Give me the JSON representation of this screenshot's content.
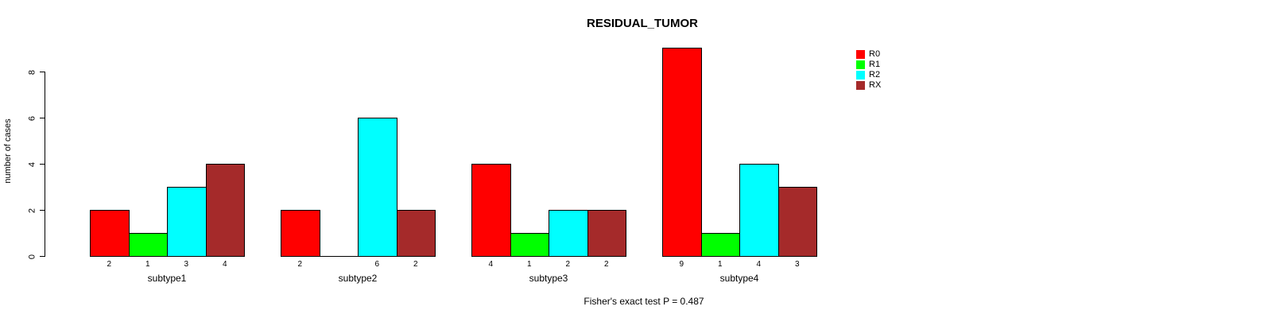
{
  "title": "RESIDUAL_TUMOR",
  "footer_annotation": "Fisher's exact test P = 0.487",
  "y_axis": {
    "label": "number of cases",
    "tick_labels": [
      "0",
      "2",
      "4",
      "6",
      "8"
    ]
  },
  "chart_data": {
    "type": "bar",
    "title": "RESIDUAL_TUMOR",
    "xlabel": "",
    "ylabel": "number of cases",
    "categories": [
      "subtype1",
      "subtype2",
      "subtype3",
      "subtype4"
    ],
    "series": [
      {
        "name": "R0",
        "color": "#FF0000",
        "values": [
          2,
          2,
          4,
          9
        ]
      },
      {
        "name": "R1",
        "color": "#00FF00",
        "values": [
          1,
          0,
          1,
          1
        ]
      },
      {
        "name": "R2",
        "color": "#00FFFF",
        "values": [
          3,
          6,
          2,
          4
        ]
      },
      {
        "name": "RX",
        "color": "#A52A2A",
        "values": [
          4,
          2,
          2,
          3
        ]
      }
    ],
    "bar_count_labels": [
      [
        "2",
        "1",
        "3",
        "4"
      ],
      [
        "2",
        "",
        "6",
        "2"
      ],
      [
        "4",
        "1",
        "2",
        "2"
      ],
      [
        "9",
        "1",
        "4",
        "3"
      ]
    ],
    "yticks": [
      0,
      2,
      4,
      6,
      8
    ],
    "ylim": [
      0,
      9
    ],
    "grid": false,
    "legend_position": "right-inside",
    "annotation": "Fisher's exact test P = 0.487"
  }
}
